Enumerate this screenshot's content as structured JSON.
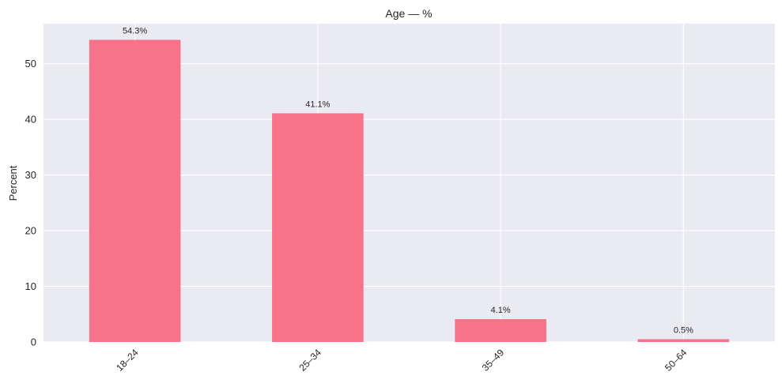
{
  "chart_data": {
    "type": "bar",
    "title": "Age — %",
    "xlabel": "",
    "ylabel": "Percent",
    "categories": [
      "18–24",
      "25–34",
      "35–49",
      "50–64"
    ],
    "values": [
      54.3,
      41.1,
      4.1,
      0.5
    ],
    "data_labels": [
      "54.3%",
      "41.1%",
      "4.1%",
      "0.5%"
    ],
    "ylim": [
      0,
      57.2
    ],
    "yticks": [
      0,
      10,
      20,
      30,
      40,
      50
    ],
    "grid": true,
    "colors": {
      "bar": "#f6738a",
      "background": "#eaeaf2",
      "grid": "#ffffff",
      "text": "#262626"
    }
  }
}
